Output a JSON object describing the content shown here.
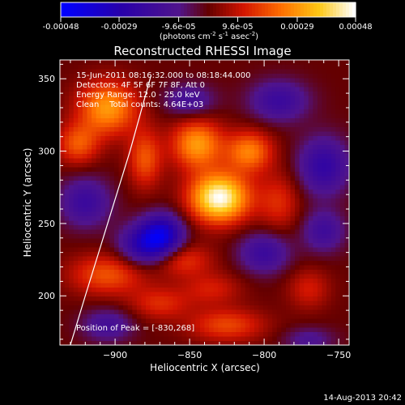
{
  "chart_data": {
    "type": "heatmap",
    "title": "Reconstructed RHESSI Image",
    "info_lines": [
      "15-Jun-2011 08:16:32.000 to 08:18:44.000",
      "Detectors: 4F 5F 6F 7F 8F, Att 0",
      "Energy Range: 12.0 - 25.0 keV",
      "Clean    Total counts: 4.64E+03"
    ],
    "peak_label": "Position of Peak = [-830,268]",
    "peak": [
      -830,
      268
    ],
    "xlabel": "Heliocentric X (arcsec)",
    "ylabel": "Heliocentric Y (arcsec)",
    "xlim": [
      -937,
      -743
    ],
    "ylim": [
      166,
      363
    ],
    "xticks": [
      -900,
      -850,
      -800,
      -750
    ],
    "yticks": [
      200,
      250,
      300,
      350
    ],
    "colorbar": {
      "ticks": [
        "-0.00048",
        "-0.00029",
        "-9.6e-05",
        "9.6e-05",
        "0.00029",
        "0.00048"
      ],
      "label_parts": [
        "(photons cm",
        "-2",
        " s",
        "-1",
        " asec",
        "-2",
        ")"
      ],
      "range": [
        -0.00048,
        0.00048
      ]
    },
    "limb": [
      [
        -930,
        166
      ],
      [
        -920,
        200
      ],
      [
        -905,
        250
      ],
      [
        -890,
        300
      ],
      [
        -876,
        352
      ]
    ],
    "sources": [
      {
        "x": -830,
        "y": 268,
        "sx": 14,
        "sy": 12,
        "a": 0.00048
      },
      {
        "x": -845,
        "y": 305,
        "sx": 12,
        "sy": 12,
        "a": 0.0003
      },
      {
        "x": -810,
        "y": 300,
        "sx": 11,
        "sy": 10,
        "a": 0.00026
      },
      {
        "x": -905,
        "y": 330,
        "sx": 14,
        "sy": 13,
        "a": 0.0003
      },
      {
        "x": -925,
        "y": 305,
        "sx": 10,
        "sy": 10,
        "a": 0.0002
      },
      {
        "x": -880,
        "y": 295,
        "sx": 8,
        "sy": 14,
        "a": 0.0002
      },
      {
        "x": -790,
        "y": 265,
        "sx": 10,
        "sy": 14,
        "a": 0.00014
      },
      {
        "x": -855,
        "y": 225,
        "sx": 14,
        "sy": 8,
        "a": 0.00016
      },
      {
        "x": -905,
        "y": 215,
        "sx": 18,
        "sy": 10,
        "a": 0.0002
      },
      {
        "x": -835,
        "y": 205,
        "sx": 14,
        "sy": 8,
        "a": 0.00012
      },
      {
        "x": -825,
        "y": 180,
        "sx": 18,
        "sy": 8,
        "a": 0.00018
      },
      {
        "x": -870,
        "y": 195,
        "sx": 14,
        "sy": 8,
        "a": 0.00014
      },
      {
        "x": -770,
        "y": 205,
        "sx": 10,
        "sy": 10,
        "a": 0.00012
      },
      {
        "x": -880,
        "y": 235,
        "sx": 12,
        "sy": 10,
        "a": -0.00028
      },
      {
        "x": -868,
        "y": 243,
        "sx": 10,
        "sy": 10,
        "a": -0.00032
      },
      {
        "x": -760,
        "y": 290,
        "sx": 12,
        "sy": 14,
        "a": -0.00024
      },
      {
        "x": -790,
        "y": 335,
        "sx": 14,
        "sy": 10,
        "a": -0.0002
      },
      {
        "x": -920,
        "y": 265,
        "sx": 12,
        "sy": 12,
        "a": -0.0002
      },
      {
        "x": -800,
        "y": 230,
        "sx": 12,
        "sy": 10,
        "a": -0.0002
      },
      {
        "x": -850,
        "y": 335,
        "sx": 12,
        "sy": 8,
        "a": -0.00016
      },
      {
        "x": -905,
        "y": 180,
        "sx": 12,
        "sy": 8,
        "a": -0.00016
      },
      {
        "x": -760,
        "y": 245,
        "sx": 10,
        "sy": 10,
        "a": -0.00018
      },
      {
        "x": -770,
        "y": 170,
        "sx": 12,
        "sy": 6,
        "a": -0.00012
      }
    ]
  },
  "footer": {
    "timestamp": "14-Aug-2013 20:42"
  }
}
